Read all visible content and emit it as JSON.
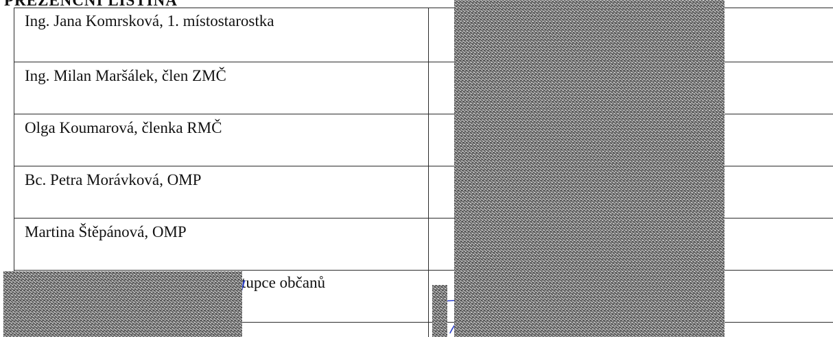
{
  "document": {
    "heading": "PREZENČNÍ LISTINA",
    "rows": [
      {
        "label": "Ing. Jana Komrsková, 1. místostarostka"
      },
      {
        "label": "Ing. Milan Maršálek, člen ZMČ"
      },
      {
        "label": "Olga Koumarová, členka RMČ"
      },
      {
        "label": "Bc. Petra Morávková, OMP"
      },
      {
        "label": "Martina Štěpánová, OMP"
      },
      {
        "label": "tupce občanů"
      }
    ],
    "ink_color": "#2b3fc9"
  }
}
